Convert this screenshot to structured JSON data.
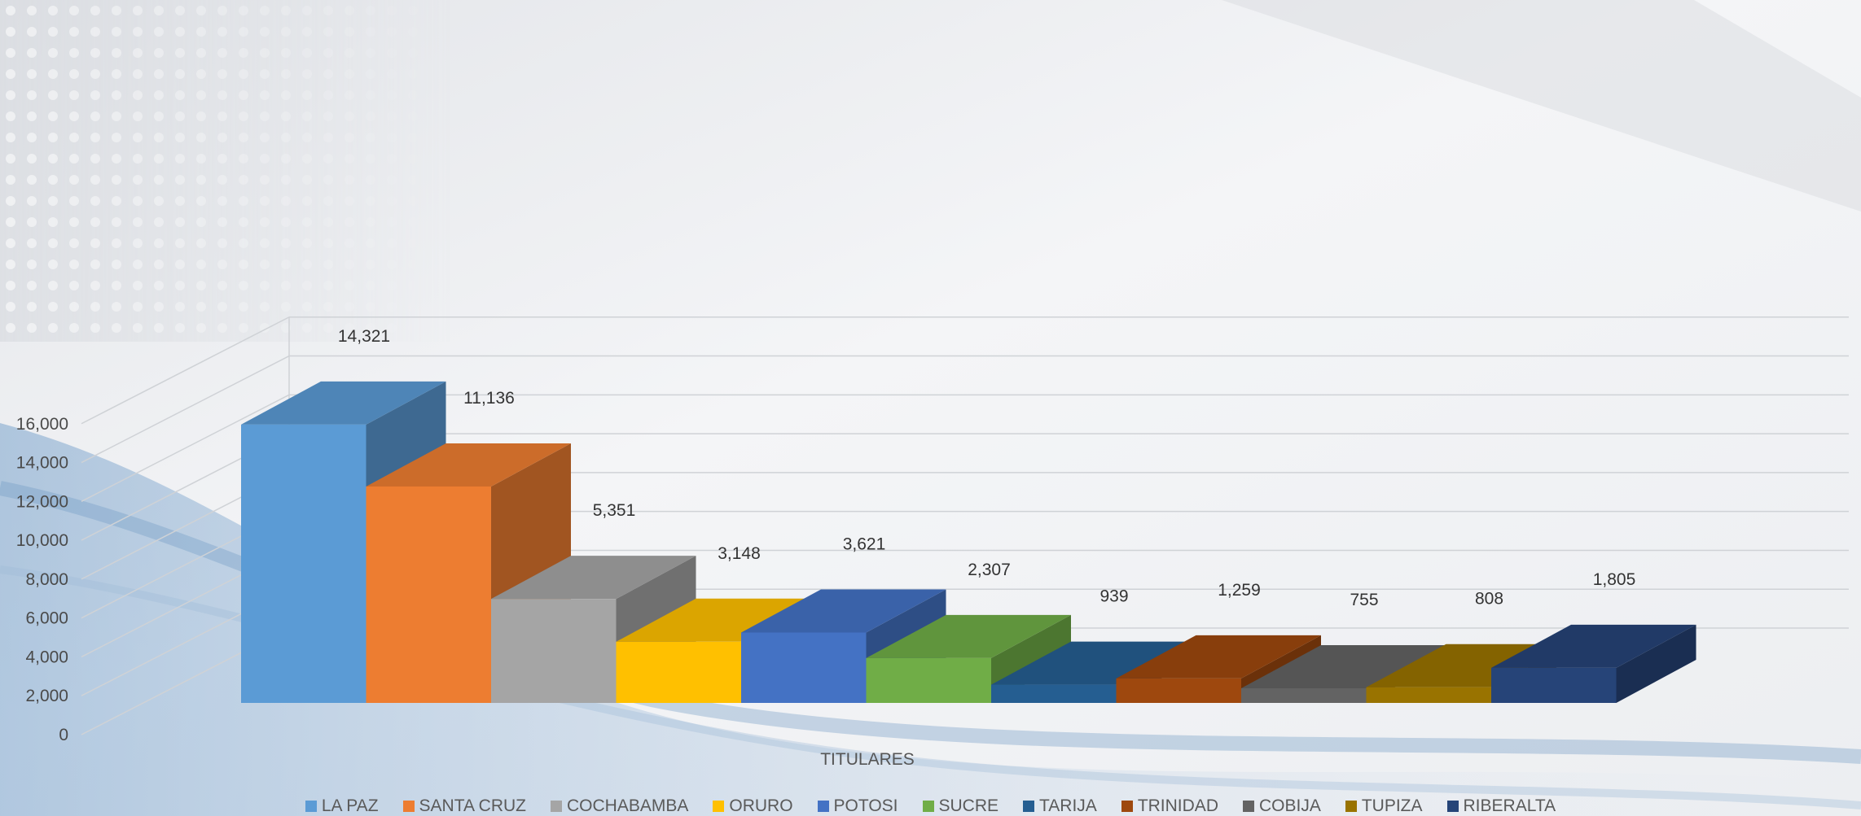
{
  "chart_data": {
    "type": "bar",
    "categories": [
      "LA PAZ",
      "SANTA CRUZ",
      "COCHABAMBA",
      "ORURO",
      "POTOSI",
      "SUCRE",
      "TARIJA",
      "TRINIDAD",
      "COBIJA",
      "TUPIZA",
      "RIBERALTA"
    ],
    "values": [
      14321,
      11136,
      5351,
      3148,
      3621,
      2307,
      939,
      1259,
      755,
      808,
      1805
    ],
    "value_labels": [
      "14,321",
      "11,136",
      "5,351",
      "3,148",
      "3,621",
      "2,307",
      "939",
      "1,259",
      "755",
      "808",
      "1,805"
    ],
    "colors": [
      "#5b9bd5",
      "#ed7d31",
      "#a5a5a5",
      "#ffc000",
      "#4472c4",
      "#70ad47",
      "#255e91",
      "#9e480e",
      "#636363",
      "#997300",
      "#264478"
    ],
    "xlabel": "TITULARES",
    "ylim": [
      0,
      16000
    ],
    "y_ticks": [
      "0",
      "2,000",
      "4,000",
      "6,000",
      "8,000",
      "10,000",
      "12,000",
      "14,000",
      "16,000"
    ],
    "grid": true,
    "legend_position": "bottom",
    "style": "3d-column"
  }
}
